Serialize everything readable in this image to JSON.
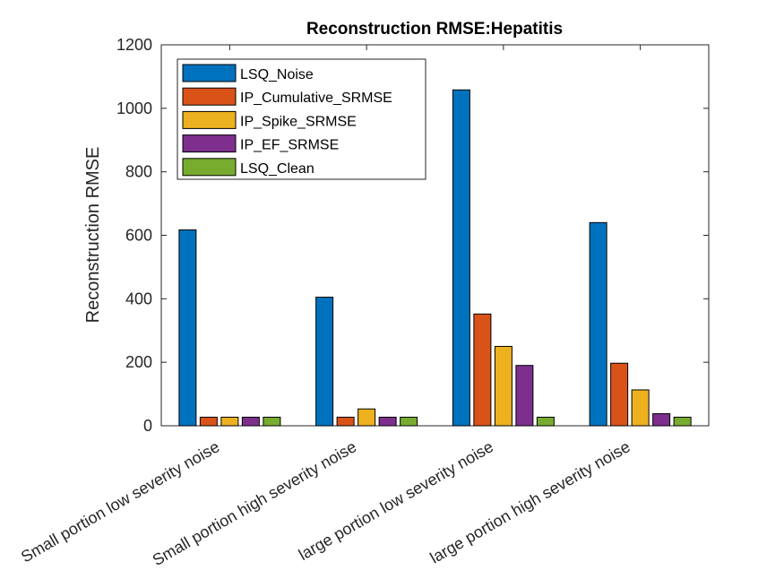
{
  "chart_data": {
    "type": "bar",
    "title": "Reconstruction RMSE:Hepatitis",
    "xlabel": "",
    "ylabel": "Reconstruction RMSE",
    "ylim": [
      0,
      1200
    ],
    "yticks": [
      0,
      200,
      400,
      600,
      800,
      1000,
      1200
    ],
    "categories": [
      "Small portion low severity noise",
      "Small portion high severity noise",
      "large portion low severity noise",
      "large portion high severity noise"
    ],
    "series": [
      {
        "name": "LSQ_Noise",
        "color": "#0072BD",
        "values": [
          617,
          405,
          1058,
          640
        ]
      },
      {
        "name": "IP_Cumulative_SRMSE",
        "color": "#D95319",
        "values": [
          27,
          27,
          352,
          197
        ]
      },
      {
        "name": "IP_Spike_SRMSE",
        "color": "#EDB120",
        "values": [
          27,
          53,
          250,
          113
        ]
      },
      {
        "name": "IP_EF_SRMSE",
        "color": "#7E2F8E",
        "values": [
          27,
          27,
          190,
          38
        ]
      },
      {
        "name": "LSQ_Clean",
        "color": "#77AC30",
        "values": [
          27,
          27,
          27,
          27
        ]
      }
    ],
    "legend_position": "top-left",
    "grid": false
  }
}
